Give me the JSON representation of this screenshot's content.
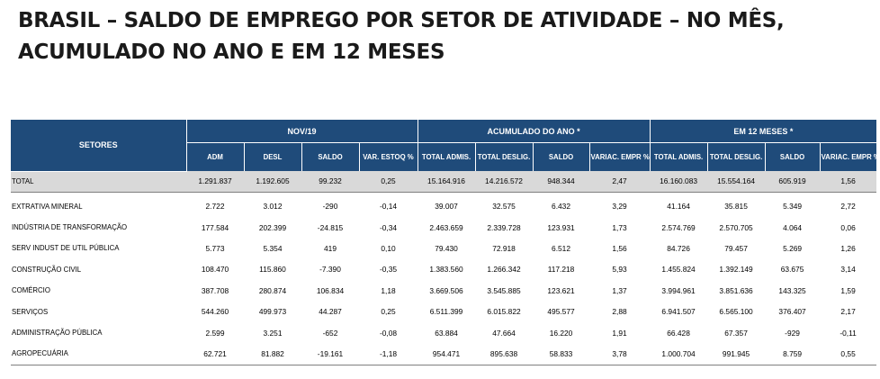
{
  "title_line1": "BRASIL – SALDO DE EMPREGO POR SETOR DE ATIVIDADE – NO MÊS,",
  "title_line2": "ACUMULADO NO ANO E EM 12 MESES",
  "table": {
    "sectors_header": "SETORES",
    "groups": [
      "NOV/19",
      "ACUMULADO DO ANO *",
      "EM 12 MESES *"
    ],
    "columns": [
      "ADM",
      "DESL",
      "SALDO",
      "VAR. ESTOQ %",
      "TOTAL ADMIS.",
      "TOTAL DESLIG.",
      "SALDO",
      "VARIAC. EMPR %",
      "TOTAL ADMIS.",
      "TOTAL DESLIG.",
      "SALDO",
      "VARIAC. EMPR %"
    ],
    "rows": [
      {
        "sector": "TOTAL",
        "values": [
          "1.291.837",
          "1.192.605",
          "99.232",
          "0,25",
          "15.164.916",
          "14.216.572",
          "948.344",
          "2,47",
          "16.160.083",
          "15.554.164",
          "605.919",
          "1,56"
        ]
      },
      {
        "sector": "EXTRATIVA MINERAL",
        "values": [
          "2.722",
          "3.012",
          "-290",
          "-0,14",
          "39.007",
          "32.575",
          "6.432",
          "3,29",
          "41.164",
          "35.815",
          "5.349",
          "2,72"
        ]
      },
      {
        "sector": "INDÚSTRIA DE TRANSFORMAÇÃO",
        "values": [
          "177.584",
          "202.399",
          "-24.815",
          "-0,34",
          "2.463.659",
          "2.339.728",
          "123.931",
          "1,73",
          "2.574.769",
          "2.570.705",
          "4.064",
          "0,06"
        ]
      },
      {
        "sector": "SERV INDUST DE UTIL PÚBLICA",
        "values": [
          "5.773",
          "5.354",
          "419",
          "0,10",
          "79.430",
          "72.918",
          "6.512",
          "1,56",
          "84.726",
          "79.457",
          "5.269",
          "1,26"
        ]
      },
      {
        "sector": "CONSTRUÇÃO CIVIL",
        "values": [
          "108.470",
          "115.860",
          "-7.390",
          "-0,35",
          "1.383.560",
          "1.266.342",
          "117.218",
          "5,93",
          "1.455.824",
          "1.392.149",
          "63.675",
          "3,14"
        ]
      },
      {
        "sector": "COMÉRCIO",
        "values": [
          "387.708",
          "280.874",
          "106.834",
          "1,18",
          "3.669.506",
          "3.545.885",
          "123.621",
          "1,37",
          "3.994.961",
          "3.851.636",
          "143.325",
          "1,59"
        ]
      },
      {
        "sector": "SERVIÇOS",
        "values": [
          "544.260",
          "499.973",
          "44.287",
          "0,25",
          "6.511.399",
          "6.015.822",
          "495.577",
          "2,88",
          "6.941.507",
          "6.565.100",
          "376.407",
          "2,17"
        ]
      },
      {
        "sector": "ADMINISTRAÇÃO PÚBLICA",
        "values": [
          "2.599",
          "3.251",
          "-652",
          "-0,08",
          "63.884",
          "47.664",
          "16.220",
          "1,91",
          "66.428",
          "67.357",
          "-929",
          "-0,11"
        ]
      },
      {
        "sector": "AGROPECUÁRIA",
        "values": [
          "62.721",
          "81.882",
          "-19.161",
          "-1,18",
          "954.471",
          "895.638",
          "58.833",
          "3,78",
          "1.000.704",
          "991.945",
          "8.759",
          "0,55"
        ]
      }
    ]
  }
}
